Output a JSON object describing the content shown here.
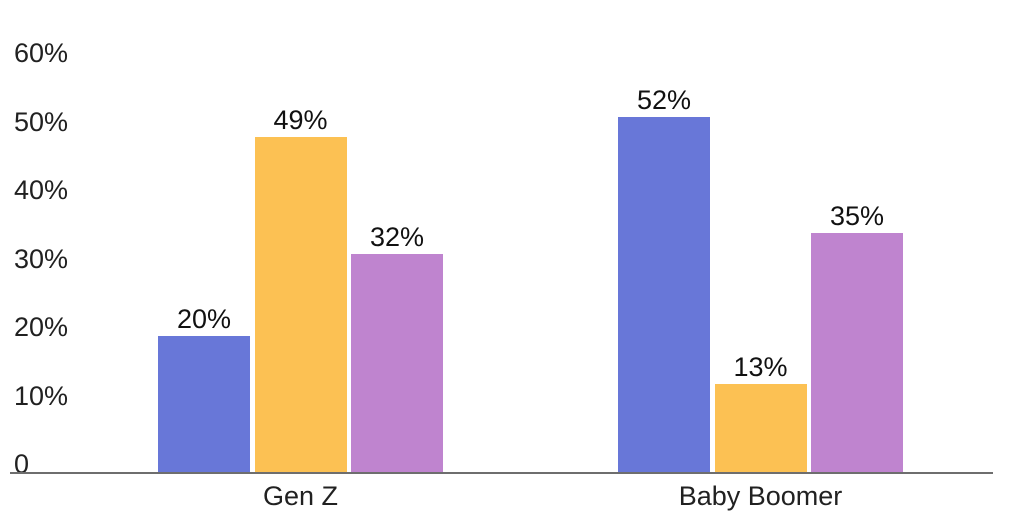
{
  "chart_data": {
    "type": "bar",
    "title": "",
    "categories": [
      "Gen Z",
      "Baby Boomer"
    ],
    "series": [
      {
        "name": "blue",
        "color": "#6877D8",
        "values": [
          20,
          52
        ],
        "labels": [
          "20%",
          "52%"
        ]
      },
      {
        "name": "orange",
        "color": "#FCC153",
        "values": [
          49,
          13
        ],
        "labels": [
          "49%",
          "13%"
        ]
      },
      {
        "name": "purple",
        "color": "#BF84CF",
        "values": [
          32,
          35
        ],
        "labels": [
          "32%",
          "35%"
        ]
      }
    ],
    "y_axis": {
      "tick_labels": [
        "60%",
        "50%",
        "40%",
        "30%",
        "20%",
        "10%",
        "0"
      ],
      "tick_values": [
        60,
        50,
        40,
        30,
        20,
        10,
        0
      ],
      "min": 0,
      "max": 60
    },
    "grid": false,
    "legend_position": "none",
    "axis_line_color": "#6E6E6E",
    "text_color": "#212121",
    "background_color": "#FFFFFF"
  }
}
